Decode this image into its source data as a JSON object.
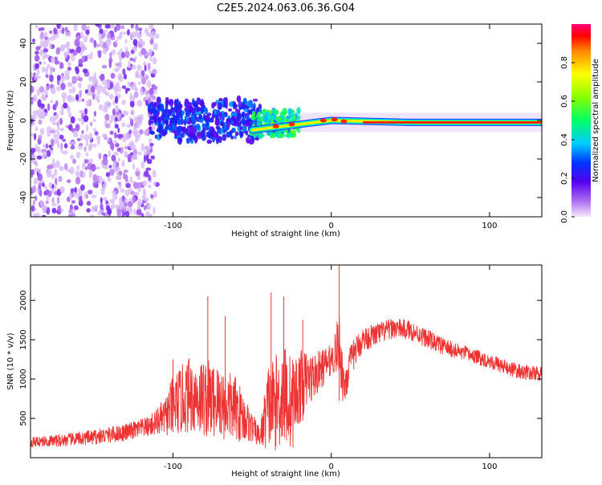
{
  "title": "C2E5.2024.063.06.36.G04",
  "chart_data": [
    {
      "type": "heatmap",
      "xlabel": "Height of straight line (km)",
      "ylabel": "Frequency (Hz)",
      "xlim": [
        -190,
        133
      ],
      "ylim": [
        -50,
        50
      ],
      "xticks": [
        -100,
        0,
        100
      ],
      "yticks": [
        -40,
        -20,
        0,
        20,
        40
      ],
      "grid": false,
      "colorbar": {
        "label": "Normalized spectral amplitude",
        "range": [
          0.0,
          1.0
        ],
        "ticks": [
          0.0,
          0.2,
          0.4,
          0.6,
          0.8
        ]
      },
      "regions": [
        {
          "x": [
            -190,
            -110
          ],
          "freq": [
            -50,
            50
          ],
          "amplitude": [
            0.05,
            0.15
          ],
          "description_value": "scattered"
        },
        {
          "x": [
            -115,
            -45
          ],
          "freq": [
            -12,
            12
          ],
          "amplitude": [
            0.15,
            0.35
          ]
        },
        {
          "x": [
            -50,
            -20
          ],
          "freq": [
            -8,
            5
          ],
          "amplitude": [
            0.3,
            0.6
          ]
        },
        {
          "x": [
            -20,
            133
          ],
          "freq": [
            -3,
            0
          ],
          "amplitude": [
            0.6,
            1.0
          ]
        }
      ],
      "ridge": [
        {
          "x": -50,
          "freq": -5
        },
        {
          "x": -30,
          "freq": -3
        },
        {
          "x": -10,
          "freq": -1
        },
        {
          "x": 0,
          "freq": 0
        },
        {
          "x": 50,
          "freq": -1
        },
        {
          "x": 100,
          "freq": -1
        },
        {
          "x": 133,
          "freq": -1
        }
      ]
    },
    {
      "type": "line",
      "xlabel": "Height of straight line (km)",
      "ylabel": "SNR (10 * v/v)",
      "xlim": [
        -190,
        133
      ],
      "ylim": [
        0,
        2450
      ],
      "xticks": [
        -100,
        0,
        100
      ],
      "yticks": [
        500,
        1000,
        1500,
        2000
      ],
      "grid": false,
      "series": [
        {
          "color": "#ee3333",
          "x": [
            -190,
            -170,
            -150,
            -130,
            -115,
            -105,
            -100,
            -90,
            -80,
            -70,
            -60,
            -50,
            -45,
            -40,
            -35,
            -30,
            -25,
            -20,
            -15,
            -10,
            -5,
            0,
            5,
            8,
            12,
            15,
            20,
            30,
            40,
            50,
            60,
            70,
            80,
            90,
            100,
            110,
            120,
            133
          ],
          "y": [
            200,
            220,
            260,
            320,
            400,
            520,
            650,
            800,
            760,
            700,
            620,
            380,
            260,
            650,
            700,
            820,
            680,
            900,
            1000,
            1050,
            1150,
            1250,
            1450,
            900,
            1200,
            1350,
            1500,
            1580,
            1650,
            1620,
            1520,
            1420,
            1350,
            1290,
            1230,
            1150,
            1090,
            1060
          ],
          "noise": [
            40,
            50,
            60,
            70,
            80,
            150,
            250,
            300,
            320,
            300,
            260,
            120,
            80,
            350,
            380,
            420,
            380,
            300,
            220,
            180,
            150,
            120,
            250,
            200,
            140,
            120,
            100,
            90,
            80,
            80,
            75,
            70,
            65,
            60,
            60,
            60,
            60,
            60
          ],
          "spikes": [
            {
              "x": -100,
              "y": 1250
            },
            {
              "x": -78,
              "y": 2050
            },
            {
              "x": -67,
              "y": 1800
            },
            {
              "x": -38,
              "y": 2100
            },
            {
              "x": -30,
              "y": 2050
            },
            {
              "x": -18,
              "y": 1750
            },
            {
              "x": 5,
              "y": 2450
            }
          ]
        }
      ]
    }
  ]
}
